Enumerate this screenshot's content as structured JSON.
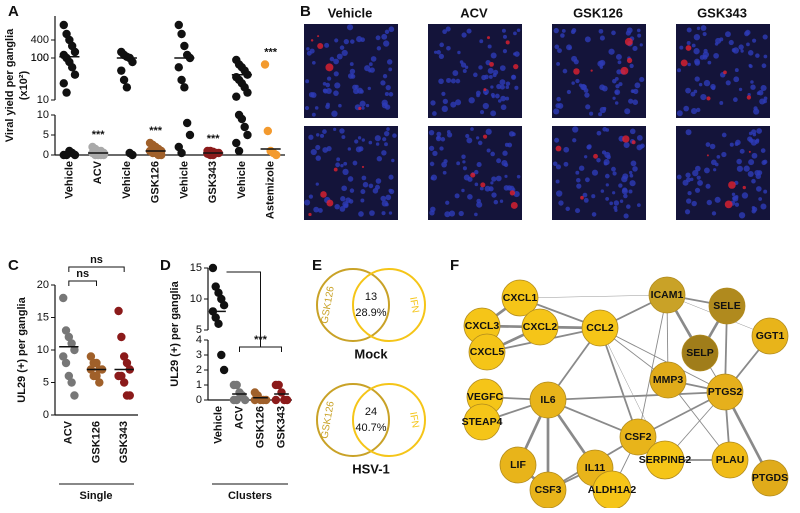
{
  "panel_labels": [
    "A",
    "B",
    "C",
    "D",
    "E",
    "F"
  ],
  "chart_data": [
    {
      "type": "dot",
      "ylabel": "Viral yield per ganglia",
      "ylabel2": "(x10²)",
      "categories": [
        "Vehicle",
        "ACV",
        "Vehicle",
        "GSK126",
        "Vehicle",
        "GSK343",
        "Vehicle",
        "Astemizole"
      ],
      "colors": [
        "#111111",
        "#a9a9a9",
        "#111111",
        "#a0602a",
        "#111111",
        "#8b1a1a",
        "#111111",
        "#f39a2e"
      ],
      "values": [
        [
          650,
          500,
          400,
          300,
          200,
          150,
          100,
          80,
          60,
          40,
          25,
          15,
          1,
          0.5,
          0,
          0,
          0
        ],
        [
          2,
          1.5,
          1,
          1,
          0.5,
          0.5,
          0,
          0,
          0,
          0
        ],
        [
          200,
          150,
          120,
          100,
          80,
          50,
          30,
          20,
          0.5,
          0
        ],
        [
          3,
          2.5,
          2,
          1.5,
          1,
          1,
          0.5,
          0.5,
          0,
          0
        ],
        [
          650,
          500,
          300,
          150,
          100,
          60,
          30,
          20,
          8,
          5,
          2,
          0.5
        ],
        [
          1,
          1,
          0.8,
          0.5,
          0.5,
          0.3,
          0,
          0
        ],
        [
          90,
          70,
          60,
          50,
          40,
          35,
          30,
          25,
          20,
          15,
          12,
          10,
          9,
          7,
          5,
          3,
          1
        ],
        [
          70,
          6,
          1,
          0.5,
          0
        ]
      ],
      "means": [
        120,
        0.5,
        100,
        1,
        100,
        0.5,
        40,
        1.5
      ],
      "annotations": [
        null,
        "***",
        null,
        "***",
        null,
        "***",
        null,
        "***"
      ],
      "segments": [
        {
          "ylim": [
            0,
            10
          ],
          "yticks": [
            0,
            5,
            10
          ]
        },
        {
          "ylim": [
            10,
            100
          ],
          "yticks": [
            10,
            100
          ],
          "log": true
        },
        {
          "ylim": [
            100,
            800
          ],
          "yticks": [
            100,
            400
          ]
        }
      ]
    },
    {
      "type": "dot",
      "ylabel": "UL29 (+) per ganglia",
      "xlabel": "Single",
      "categories": [
        "ACV",
        "GSK126",
        "GSK343"
      ],
      "colors": [
        "#777777",
        "#a0602a",
        "#8b1a1a"
      ],
      "values": [
        [
          18,
          13,
          12,
          11,
          10,
          9,
          8,
          6,
          5,
          3
        ],
        [
          9,
          8,
          8,
          7,
          7,
          7,
          6,
          6,
          5
        ],
        [
          16,
          12,
          9,
          8,
          7,
          6,
          6,
          5,
          3,
          3
        ]
      ],
      "means": [
        10.5,
        7,
        7
      ],
      "brackets": [
        {
          "text": "ns",
          "from": 0,
          "to": 1
        },
        {
          "text": "ns",
          "from": 0,
          "to": 2
        }
      ],
      "segments": [
        {
          "ylim": [
            0,
            20
          ],
          "yticks": [
            0,
            5,
            10,
            15,
            20
          ]
        }
      ]
    },
    {
      "type": "dot",
      "ylabel": "UL29 (+) per ganglia",
      "xlabel": "Clusters",
      "categories": [
        "Vehicle",
        "ACV",
        "GSK126",
        "GSK343"
      ],
      "colors": [
        "#111111",
        "#777777",
        "#a0602a",
        "#8b1a1a"
      ],
      "values": [
        [
          15,
          12,
          11,
          10,
          9,
          8,
          7,
          6,
          3,
          2
        ],
        [
          1,
          1,
          0.5,
          0.3,
          0,
          0,
          0
        ],
        [
          0.5,
          0.3,
          0,
          0,
          0,
          0
        ],
        [
          1,
          1,
          0.5,
          0,
          0,
          0
        ]
      ],
      "means": [
        8,
        0.4,
        0.15,
        0.4
      ],
      "brackets": [
        {
          "text": "***",
          "from": 1,
          "to": 3
        }
      ],
      "segments": [
        {
          "ylim": [
            0,
            4
          ],
          "yticks": [
            0,
            1,
            2,
            3,
            4
          ]
        },
        {
          "ylim": [
            5,
            15
          ],
          "yticks": [
            5,
            10,
            15
          ]
        }
      ]
    }
  ],
  "images": {
    "columns": [
      "Vehicle",
      "ACV",
      "GSK126",
      "GSK343"
    ]
  },
  "venn": [
    {
      "left": "GSK126",
      "right": "IFN",
      "count": 13,
      "percent": "28.9%",
      "caption": "Mock"
    },
    {
      "left": "GSK126",
      "right": "IFN",
      "count": 24,
      "percent": "40.7%",
      "caption": "HSV-1"
    }
  ],
  "network": {
    "nodes": [
      {
        "label": "CXCL1",
        "color": "#f5c518"
      },
      {
        "label": "CXCL3",
        "color": "#f5c518"
      },
      {
        "label": "CXCL2",
        "color": "#f5c518"
      },
      {
        "label": "CXCL5",
        "color": "#f5c518"
      },
      {
        "label": "CCL2",
        "color": "#f5c518"
      },
      {
        "label": "ICAM1",
        "color": "#c9a227"
      },
      {
        "label": "SELE",
        "color": "#b08a1e"
      },
      {
        "label": "SELP",
        "color": "#a07d1a"
      },
      {
        "label": "GGT1",
        "color": "#e8b41a"
      },
      {
        "label": "MMP3",
        "color": "#e0ab1a"
      },
      {
        "label": "PTGS2",
        "color": "#e6b01c"
      },
      {
        "label": "VEGFC",
        "color": "#f5c518"
      },
      {
        "label": "IL6",
        "color": "#e8b41a"
      },
      {
        "label": "STEAP4",
        "color": "#f5c518"
      },
      {
        "label": "CSF2",
        "color": "#e8b41a"
      },
      {
        "label": "IL11",
        "color": "#e8b41a"
      },
      {
        "label": "LIF",
        "color": "#e8b41a"
      },
      {
        "label": "SERPINB2",
        "color": "#f5c518"
      },
      {
        "label": "PLAU",
        "color": "#f0bc18"
      },
      {
        "label": "PTGDS",
        "color": "#e0ab1a"
      },
      {
        "label": "CSF3",
        "color": "#e8b41a"
      },
      {
        "label": "ALDH1A2",
        "color": "#f5c518"
      }
    ]
  }
}
